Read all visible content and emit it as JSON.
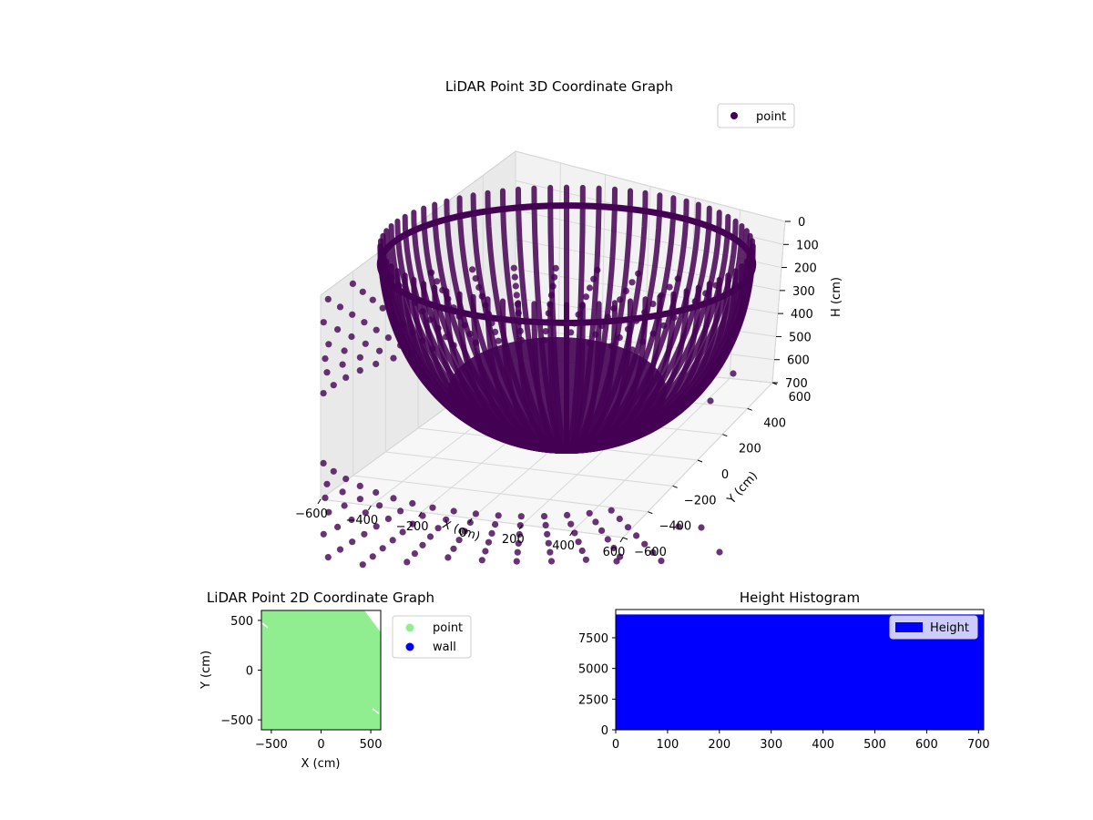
{
  "chart_data": [
    {
      "type": "scatter",
      "projection": "3d",
      "title": "LiDAR Point 3D Coordinate Graph",
      "xlabel": "X (cm)",
      "ylabel": "Y (cm)",
      "zlabel": "H (cm)",
      "xlim": [
        -600,
        600
      ],
      "ylim": [
        -600,
        600
      ],
      "zlim": [
        0,
        700
      ],
      "z_inverted": true,
      "xticks": [
        "−600",
        "−400",
        "−200",
        "0",
        "200",
        "400",
        "600"
      ],
      "yticks": [
        "−600",
        "−400",
        "−200",
        "0",
        "200",
        "400",
        "600"
      ],
      "zticks": [
        "0",
        "100",
        "200",
        "300",
        "400",
        "500",
        "600",
        "700"
      ],
      "grid": true,
      "legend": {
        "position": "top-right",
        "entries": [
          {
            "label": "point",
            "color": "#440154"
          }
        ]
      },
      "series": [
        {
          "name": "point",
          "color": "#440154",
          "shape": "hemispherical dome of radial scan lines"
        }
      ]
    },
    {
      "type": "scatter",
      "title": "LiDAR Point 2D Coordinate Graph",
      "xlabel": "X (cm)",
      "ylabel": "Y (cm)",
      "xlim": [
        -600,
        600
      ],
      "ylim": [
        -600,
        600
      ],
      "xticks": [
        "−500",
        "0",
        "500"
      ],
      "yticks": [
        "−500",
        "0",
        "500"
      ],
      "legend": {
        "position": "outside-right",
        "entries": [
          {
            "label": "point",
            "color": "#90ee90"
          },
          {
            "label": "wall",
            "color": "#0000ff"
          }
        ]
      },
      "series": [
        {
          "name": "point",
          "color": "#90ee90",
          "fill": "dense, covering plot area"
        },
        {
          "name": "wall",
          "color": "#0000ff"
        }
      ]
    },
    {
      "type": "bar",
      "title": "Height Histogram",
      "xlim": [
        0,
        710
      ],
      "ylim": [
        0,
        9800
      ],
      "xticks": [
        "0",
        "100",
        "200",
        "300",
        "400",
        "500",
        "600",
        "700"
      ],
      "yticks": [
        "0",
        "2500",
        "5000",
        "7500"
      ],
      "legend": {
        "position": "top-right",
        "entries": [
          {
            "label": "Height",
            "color": "#0000ff"
          }
        ]
      },
      "series": [
        {
          "name": "Height",
          "color": "#0000ff",
          "bins": [
            {
              "x0": 0,
              "x1": 710,
              "count": 9400
            }
          ]
        }
      ]
    }
  ]
}
